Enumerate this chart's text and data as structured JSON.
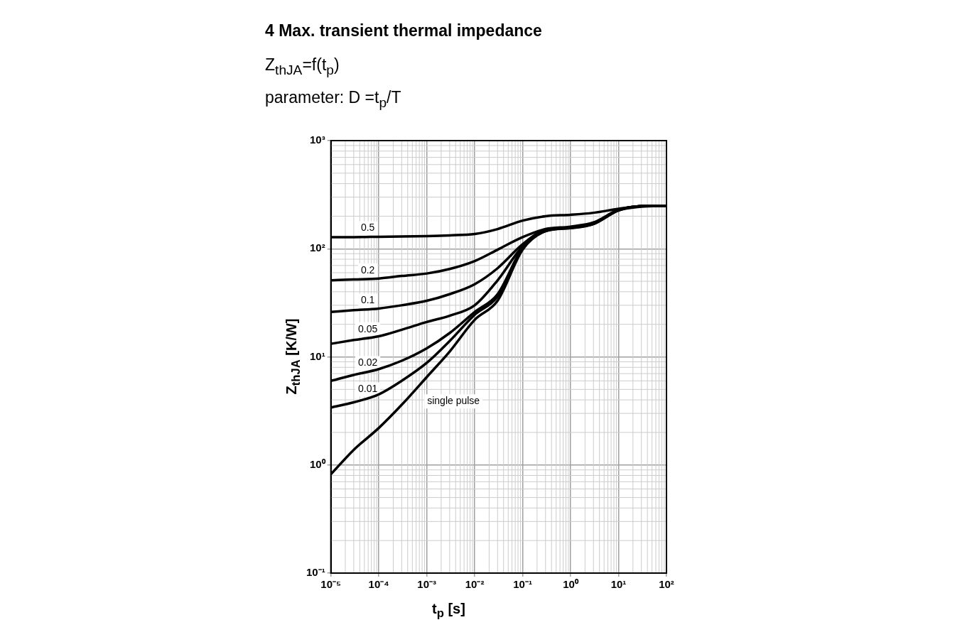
{
  "chart_data": {
    "type": "line",
    "title": "4 Max. transient thermal impedance",
    "subtitle": "Z$_{thJA}$=f(t$_{p}$)",
    "annotations": [
      "parameter: D =t$_{p}$/T"
    ],
    "xlabel": "t$_{p}$ [s]",
    "ylabel": "Z$_{thJA}$ [K/W]",
    "x": [
      1e-05,
      3e-05,
      0.0001,
      0.0003,
      0.001,
      0.003,
      0.01,
      0.03,
      0.1,
      0.3,
      1,
      3,
      10,
      30,
      100
    ],
    "series": [
      {
        "name": "0.5",
        "color": "#000000",
        "values": [
          128,
          128,
          129,
          130,
          131,
          133,
          137,
          152,
          182,
          200,
          206,
          215,
          234,
          248,
          250
        ]
      },
      {
        "name": "0.2",
        "color": "#000000",
        "values": [
          51,
          52,
          53,
          56,
          59,
          65,
          77,
          98,
          128,
          152,
          160,
          175,
          229,
          248,
          250
        ]
      },
      {
        "name": "0.1",
        "color": "#000000",
        "values": [
          26,
          27,
          28,
          30,
          33,
          38,
          47,
          66,
          110,
          150,
          158,
          172,
          228,
          248,
          250
        ]
      },
      {
        "name": "0.05",
        "color": "#000000",
        "values": [
          13.2,
          14.3,
          15.5,
          17.8,
          21,
          24,
          30,
          51,
          105,
          148,
          157,
          171,
          228,
          248,
          250
        ]
      },
      {
        "name": "0.02",
        "color": "#000000",
        "values": [
          6.0,
          6.8,
          7.7,
          9.2,
          12,
          16.6,
          26,
          38,
          102,
          147,
          156,
          170,
          227,
          248,
          250
        ]
      },
      {
        "name": "0.01",
        "color": "#000000",
        "values": [
          3.4,
          3.8,
          4.5,
          6.0,
          8.8,
          14,
          24.5,
          36,
          100,
          146,
          156,
          170,
          227,
          248,
          250
        ]
      },
      {
        "name": "single pulse",
        "color": "#000000",
        "values": [
          0.82,
          1.38,
          2.2,
          3.6,
          6.5,
          11.2,
          22,
          33,
          98,
          145,
          155,
          169,
          226,
          245,
          250
        ]
      }
    ],
    "log": "xy",
    "xlim": [
      1e-05,
      100
    ],
    "ylim": [
      0.1,
      1000
    ],
    "xticks": [
      {
        "value": 1e-05,
        "label": "10⁻⁵"
      },
      {
        "value": 0.0001,
        "label": "10⁻⁴"
      },
      {
        "value": 0.001,
        "label": "10⁻³"
      },
      {
        "value": 0.01,
        "label": "10⁻²"
      },
      {
        "value": 0.1,
        "label": "10⁻¹"
      },
      {
        "value": 1,
        "label": "10⁰"
      },
      {
        "value": 10,
        "label": "10¹"
      },
      {
        "value": 100,
        "label": "10²"
      }
    ],
    "yticks": [
      {
        "value": 0.1,
        "label": "10⁻¹"
      },
      {
        "value": 1,
        "label": "10⁰"
      },
      {
        "value": 10,
        "label": "10¹"
      },
      {
        "value": 100,
        "label": "10²"
      },
      {
        "value": 1000,
        "label": "10³"
      }
    ],
    "grid": true,
    "legend": false,
    "marker": "none",
    "line_style": "solid"
  }
}
